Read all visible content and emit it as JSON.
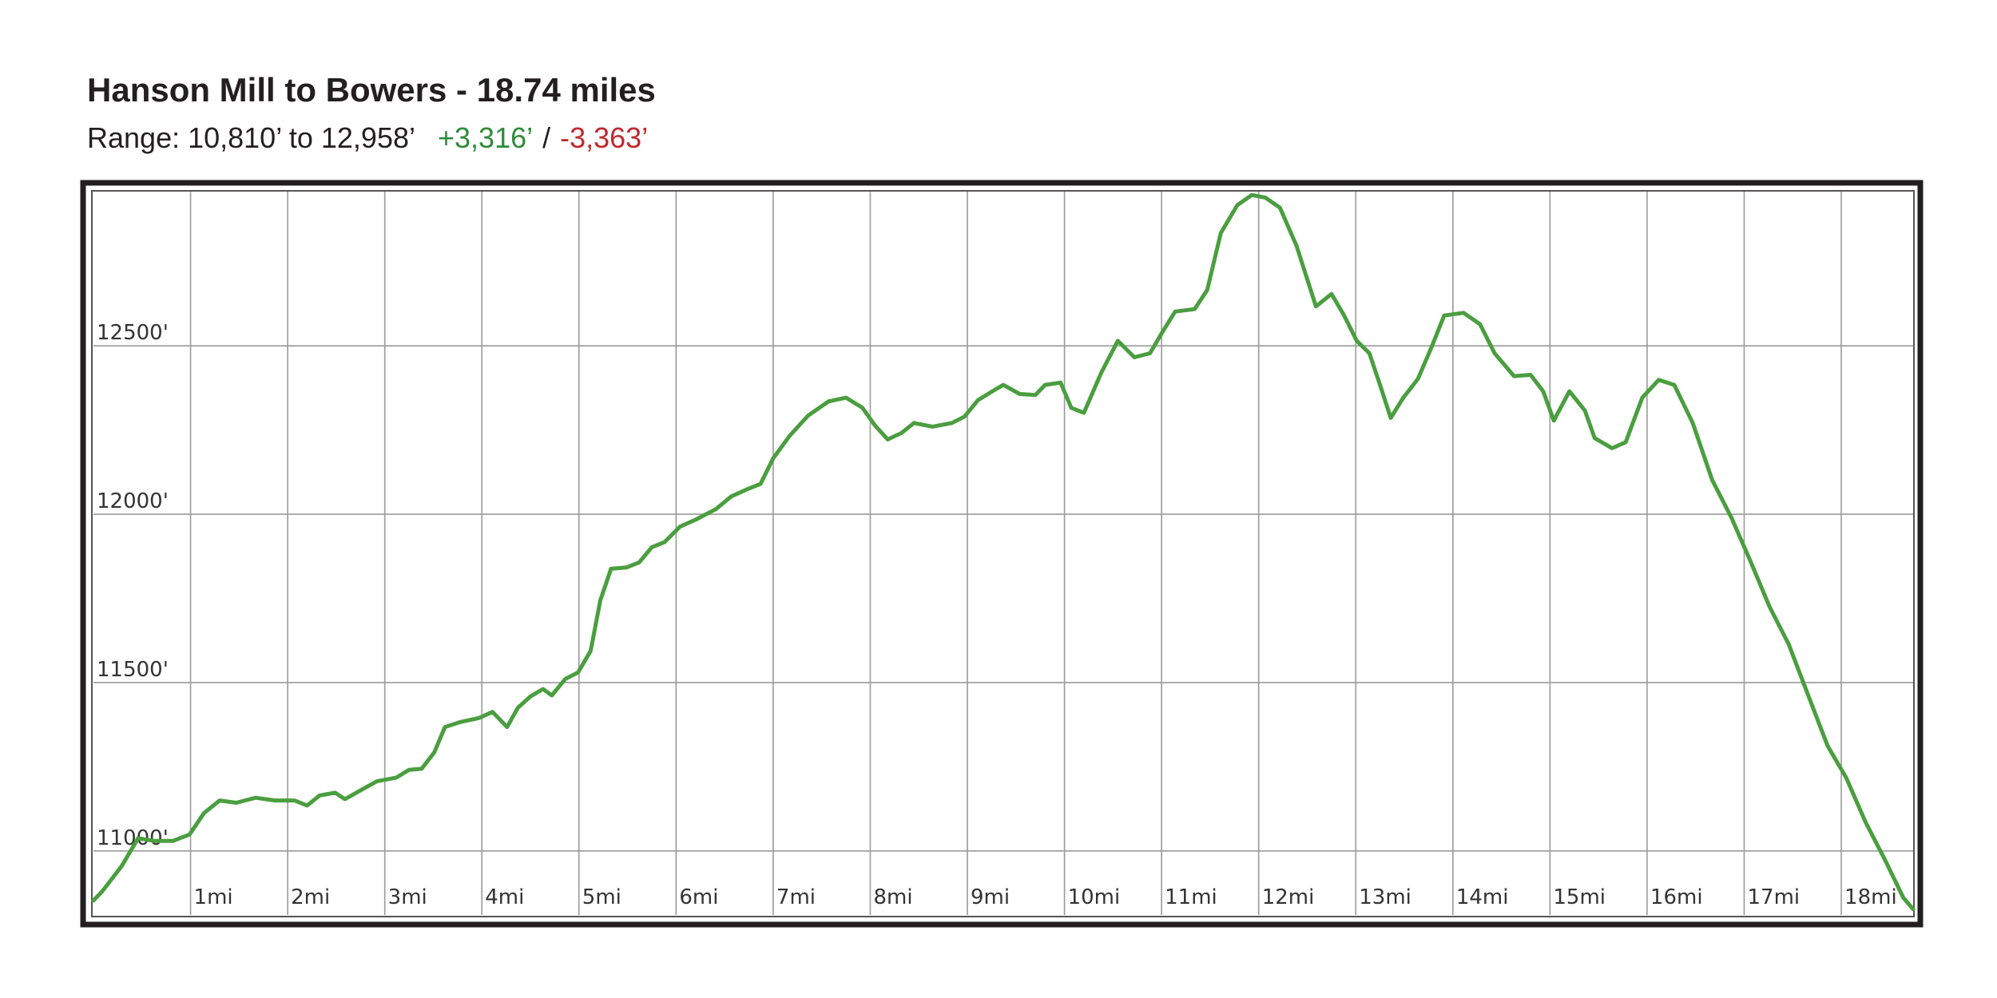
{
  "chart_data": {
    "type": "line",
    "title": "Hanson Mill to Bowers - 18.74 miles",
    "subtitle": {
      "range": "Range: 10,810’ to 12,958’",
      "gain": "+3,316’",
      "separator": "/",
      "loss": "-3,363’"
    },
    "gain_color": "#2e8b3a",
    "loss_color": "#c1272d",
    "color": "#4a9e3f",
    "grid": true,
    "xlim": [
      0,
      18.74
    ],
    "ylim": [
      10810,
      12958
    ],
    "xticks": [
      {
        "value": 1,
        "label": "1mi"
      },
      {
        "value": 2,
        "label": "2mi"
      },
      {
        "value": 3,
        "label": "3mi"
      },
      {
        "value": 4,
        "label": "4mi"
      },
      {
        "value": 5,
        "label": "5mi"
      },
      {
        "value": 6,
        "label": "6mi"
      },
      {
        "value": 7,
        "label": "7mi"
      },
      {
        "value": 8,
        "label": "8mi"
      },
      {
        "value": 9,
        "label": "9mi"
      },
      {
        "value": 10,
        "label": "10mi"
      },
      {
        "value": 11,
        "label": "11mi"
      },
      {
        "value": 12,
        "label": "12mi"
      },
      {
        "value": 13,
        "label": "13mi"
      },
      {
        "value": 14,
        "label": "14mi"
      },
      {
        "value": 15,
        "label": "15mi"
      },
      {
        "value": 16,
        "label": "16mi"
      },
      {
        "value": 17,
        "label": "17mi"
      },
      {
        "value": 18,
        "label": "18mi"
      }
    ],
    "yticks": [
      {
        "value": 11000,
        "label": "11000'"
      },
      {
        "value": 11500,
        "label": "11500'"
      },
      {
        "value": 12000,
        "label": "12000'"
      },
      {
        "value": 12500,
        "label": "12500'"
      }
    ],
    "x": [
      0,
      0.09,
      0.29,
      0.46,
      0.62,
      0.82,
      0.99,
      1.14,
      1.3,
      1.47,
      1.67,
      1.87,
      2.07,
      2.2,
      2.33,
      2.49,
      2.59,
      2.75,
      2.92,
      3.12,
      3.25,
      3.38,
      3.51,
      3.62,
      3.78,
      3.97,
      4.11,
      4.26,
      4.37,
      4.5,
      4.63,
      4.72,
      4.86,
      4.99,
      5.12,
      5.22,
      5.33,
      5.49,
      5.62,
      5.75,
      5.88,
      6.04,
      6.21,
      6.41,
      6.57,
      6.74,
      6.87,
      7.0,
      7.17,
      7.36,
      7.57,
      7.75,
      7.92,
      8.05,
      8.18,
      8.32,
      8.45,
      8.64,
      8.84,
      8.97,
      9.11,
      9.28,
      9.37,
      9.54,
      9.7,
      9.8,
      9.96,
      10.07,
      10.2,
      10.38,
      10.55,
      10.72,
      10.88,
      11.01,
      11.14,
      11.34,
      11.47,
      11.61,
      11.78,
      11.93,
      12.07,
      12.22,
      12.39,
      12.59,
      12.75,
      12.88,
      13.01,
      13.14,
      13.25,
      13.36,
      13.49,
      13.64,
      13.78,
      13.91,
      14.11,
      14.28,
      14.43,
      14.63,
      14.8,
      14.93,
      15.04,
      15.2,
      15.36,
      15.46,
      15.64,
      15.78,
      15.95,
      16.12,
      16.28,
      16.47,
      16.67,
      16.87,
      17.07,
      17.26,
      17.46,
      17.66,
      17.86,
      18.05,
      18.25,
      18.45,
      18.64,
      18.74
    ],
    "values": [
      10853,
      10880,
      10955,
      11038,
      11030,
      11030,
      11049,
      11113,
      11150,
      11143,
      11158,
      11150,
      11150,
      11135,
      11165,
      11173,
      11154,
      11180,
      11207,
      11218,
      11241,
      11244,
      11293,
      11368,
      11383,
      11395,
      11413,
      11368,
      11425,
      11459,
      11481,
      11462,
      11511,
      11530,
      11594,
      11744,
      11838,
      11842,
      11857,
      11902,
      11917,
      11963,
      11985,
      12015,
      12053,
      12075,
      12090,
      12166,
      12233,
      12293,
      12335,
      12346,
      12316,
      12263,
      12222,
      12241,
      12271,
      12260,
      12271,
      12290,
      12339,
      12369,
      12384,
      12357,
      12354,
      12384,
      12391,
      12316,
      12301,
      12421,
      12515,
      12466,
      12478,
      12542,
      12602,
      12609,
      12666,
      12835,
      12918,
      12948,
      12940,
      12910,
      12797,
      12617,
      12654,
      12590,
      12515,
      12478,
      12384,
      12286,
      12346,
      12402,
      12496,
      12590,
      12598,
      12564,
      12478,
      12410,
      12414,
      12365,
      12278,
      12365,
      12308,
      12226,
      12196,
      12214,
      12346,
      12399,
      12384,
      12271,
      12102,
      11989,
      11857,
      11726,
      11613,
      11462,
      11312,
      11218,
      11086,
      10974,
      10861,
      10827
    ]
  }
}
